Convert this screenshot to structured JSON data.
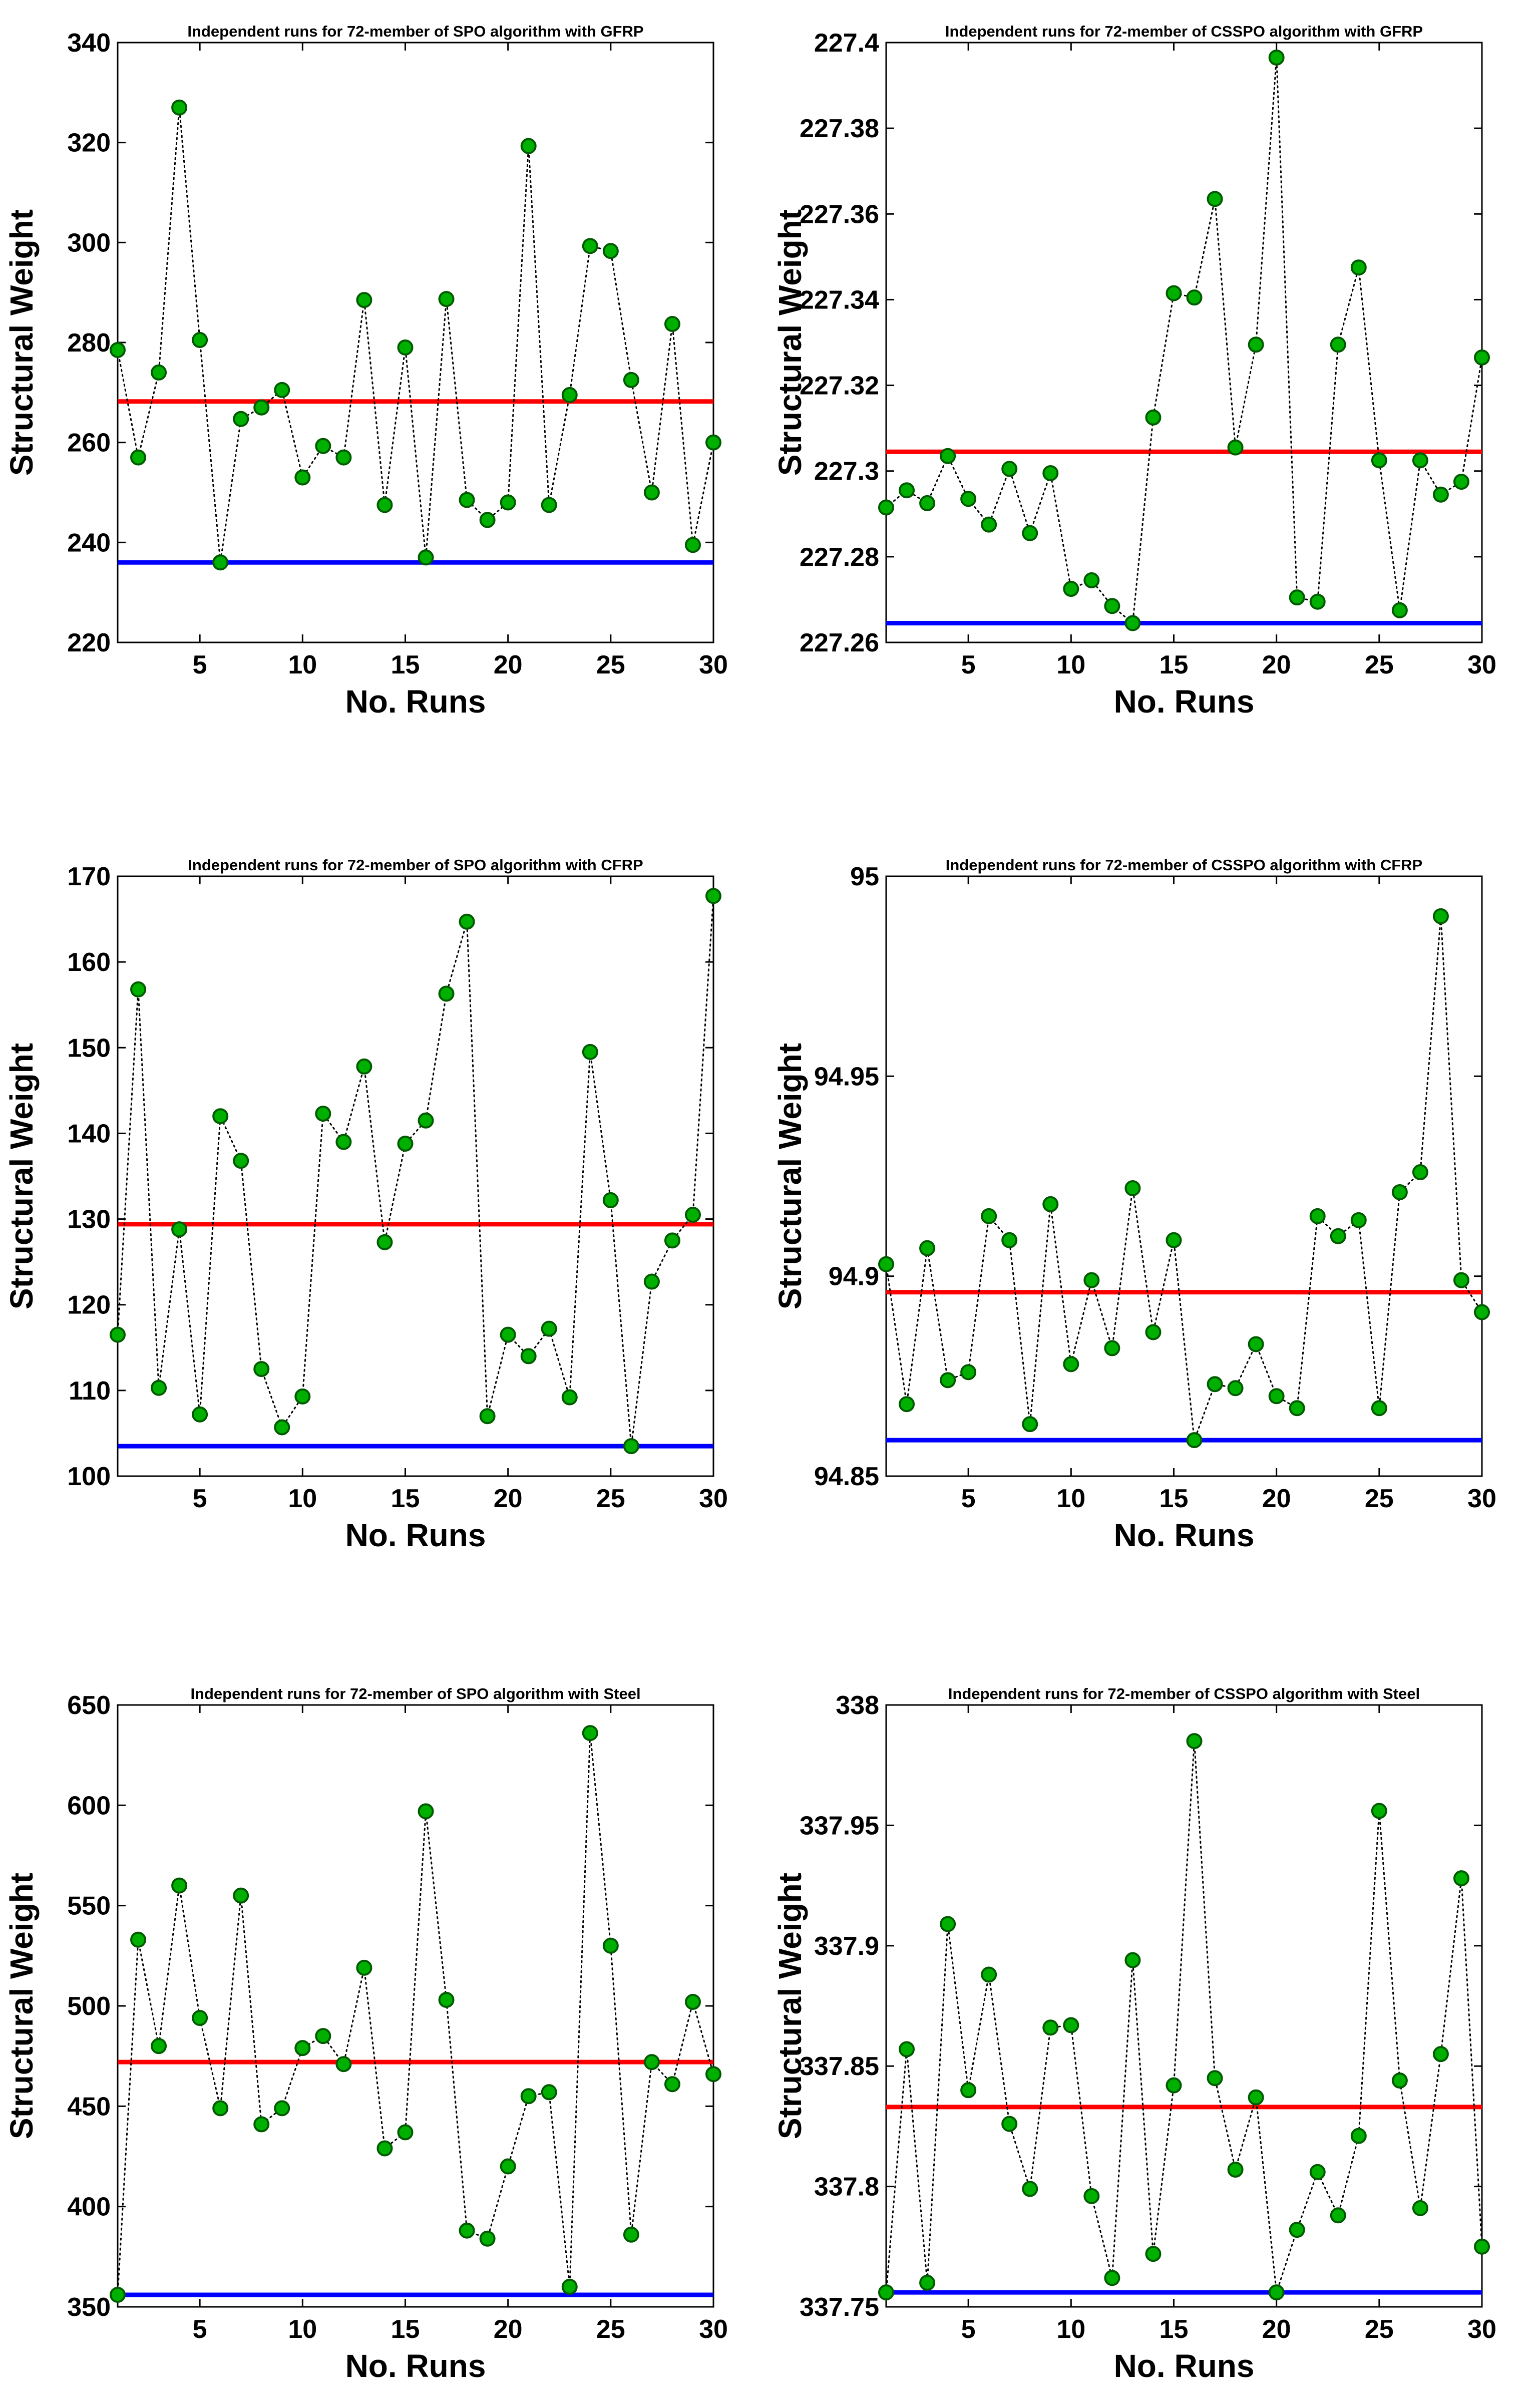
{
  "colors": {
    "mean_line": "#ff0000",
    "best_line": "#0000ff",
    "marker_fill": "#00b000",
    "marker_edge": "#005a00",
    "connector": "#000000"
  },
  "chart_data": [
    {
      "type": "line",
      "title": "Independent runs for 72-member of SPO algorithm with GFRP",
      "xlabel": "No. Runs",
      "ylabel": "Structural Weight",
      "xlim": [
        1,
        30
      ],
      "ylim": [
        220,
        340
      ],
      "xticks": [
        "5",
        "10",
        "15",
        "20",
        "25",
        "30"
      ],
      "yticks": [
        "220",
        "240",
        "260",
        "280",
        "300",
        "320",
        "340"
      ],
      "grid": false,
      "x": [
        1,
        2,
        3,
        4,
        5,
        6,
        7,
        8,
        9,
        10,
        11,
        12,
        13,
        14,
        15,
        16,
        17,
        18,
        19,
        20,
        21,
        22,
        23,
        24,
        25,
        26,
        27,
        28,
        29,
        30
      ],
      "values": [
        278.5,
        257,
        274,
        327,
        280.5,
        236,
        264.7,
        267,
        270.5,
        253,
        259.3,
        257,
        288.5,
        247.5,
        279,
        237,
        288.7,
        248.5,
        244.5,
        248,
        319.3,
        247.5,
        269.5,
        299.3,
        298.3,
        272.5,
        250,
        283.7,
        239.5,
        260
      ],
      "mean_line": 268.2,
      "best_line": 236
    },
    {
      "type": "line",
      "title": "Independent runs for 72-member of CSSPO algorithm with GFRP",
      "xlabel": "No. Runs",
      "ylabel": "Structural Weight",
      "xlim": [
        1,
        30
      ],
      "ylim": [
        227.26,
        227.4
      ],
      "xticks": [
        "5",
        "10",
        "15",
        "20",
        "25",
        "30"
      ],
      "yticks": [
        "227.26",
        "227.28",
        "227.3",
        "227.32",
        "227.34",
        "227.36",
        "227.38",
        "227.4"
      ],
      "grid": false,
      "x": [
        1,
        2,
        3,
        4,
        5,
        6,
        7,
        8,
        9,
        10,
        11,
        12,
        13,
        14,
        15,
        16,
        17,
        18,
        19,
        20,
        21,
        22,
        23,
        24,
        25,
        26,
        27,
        28,
        29,
        30
      ],
      "values": [
        227.2915,
        227.2955,
        227.2925,
        227.3035,
        227.2935,
        227.2875,
        227.3005,
        227.2855,
        227.2995,
        227.2725,
        227.2745,
        227.2685,
        227.2645,
        227.3125,
        227.3415,
        227.3405,
        227.3635,
        227.3055,
        227.3295,
        227.3965,
        227.2705,
        227.2695,
        227.3295,
        227.3475,
        227.3025,
        227.2675,
        227.3025,
        227.2945,
        227.2975,
        227.3265
      ],
      "mean_line": 227.3045,
      "best_line": 227.2645
    },
    {
      "type": "line",
      "title": "Independent runs for 72-member of SPO algorithm with CFRP",
      "xlabel": "No. Runs",
      "ylabel": "Structural Weight",
      "xlim": [
        1,
        30
      ],
      "ylim": [
        100,
        170
      ],
      "xticks": [
        "5",
        "10",
        "15",
        "20",
        "25",
        "30"
      ],
      "yticks": [
        "100",
        "110",
        "120",
        "130",
        "140",
        "150",
        "160",
        "170"
      ],
      "grid": false,
      "x": [
        1,
        2,
        3,
        4,
        5,
        6,
        7,
        8,
        9,
        10,
        11,
        12,
        13,
        14,
        15,
        16,
        17,
        18,
        19,
        20,
        21,
        22,
        23,
        24,
        25,
        26,
        27,
        28,
        29,
        30
      ],
      "values": [
        116.5,
        156.8,
        110.3,
        128.8,
        107.2,
        142,
        136.8,
        112.5,
        105.7,
        109.3,
        142.3,
        139,
        147.8,
        127.3,
        138.8,
        141.5,
        156.3,
        164.7,
        107,
        116.5,
        114,
        117.2,
        109.2,
        149.5,
        132.2,
        103.5,
        122.7,
        127.5,
        130.5,
        167.7
      ],
      "mean_line": 129.4,
      "best_line": 103.5
    },
    {
      "type": "line",
      "title": "Independent runs for 72-member of CSSPO algorithm with CFRP",
      "xlabel": "No. Runs",
      "ylabel": "Structural Weight",
      "xlim": [
        1,
        30
      ],
      "ylim": [
        94.85,
        95
      ],
      "xticks": [
        "5",
        "10",
        "15",
        "20",
        "25",
        "30"
      ],
      "yticks": [
        "94.85",
        "94.9",
        "94.95",
        "95"
      ],
      "grid": false,
      "x": [
        1,
        2,
        3,
        4,
        5,
        6,
        7,
        8,
        9,
        10,
        11,
        12,
        13,
        14,
        15,
        16,
        17,
        18,
        19,
        20,
        21,
        22,
        23,
        24,
        25,
        26,
        27,
        28,
        29,
        30
      ],
      "values": [
        94.903,
        94.868,
        94.907,
        94.874,
        94.876,
        94.915,
        94.909,
        94.863,
        94.918,
        94.878,
        94.899,
        94.882,
        94.922,
        94.886,
        94.909,
        94.859,
        94.873,
        94.872,
        94.883,
        94.87,
        94.867,
        94.915,
        94.91,
        94.914,
        94.867,
        94.921,
        94.926,
        94.99,
        94.899,
        94.891
      ],
      "mean_line": 94.896,
      "best_line": 94.859
    },
    {
      "type": "line",
      "title": "Independent runs for 72-member of SPO algorithm with Steel",
      "xlabel": "No. Runs",
      "ylabel": "Structural Weight",
      "xlim": [
        1,
        30
      ],
      "ylim": [
        350,
        650
      ],
      "xticks": [
        "5",
        "10",
        "15",
        "20",
        "25",
        "30"
      ],
      "yticks": [
        "350",
        "400",
        "450",
        "500",
        "550",
        "600",
        "650"
      ],
      "grid": false,
      "x": [
        1,
        2,
        3,
        4,
        5,
        6,
        7,
        8,
        9,
        10,
        11,
        12,
        13,
        14,
        15,
        16,
        17,
        18,
        19,
        20,
        21,
        22,
        23,
        24,
        25,
        26,
        27,
        28,
        29,
        30
      ],
      "values": [
        356,
        533,
        480,
        560,
        494,
        449,
        555,
        441,
        449,
        479,
        485,
        471,
        519,
        429,
        437,
        597,
        503,
        388,
        384,
        420,
        455,
        457,
        360,
        636,
        530,
        386,
        472,
        461,
        502,
        466
      ],
      "mean_line": 472,
      "best_line": 356
    },
    {
      "type": "line",
      "title": "Independent runs for 72-member of CSSPO algorithm with Steel",
      "xlabel": "No. Runs",
      "ylabel": "Structural Weight",
      "xlim": [
        1,
        30
      ],
      "ylim": [
        337.75,
        338
      ],
      "xticks": [
        "5",
        "10",
        "15",
        "20",
        "25",
        "30"
      ],
      "yticks": [
        "337.75",
        "337.8",
        "337.85",
        "337.9",
        "337.95",
        "338"
      ],
      "grid": false,
      "x": [
        1,
        2,
        3,
        4,
        5,
        6,
        7,
        8,
        9,
        10,
        11,
        12,
        13,
        14,
        15,
        16,
        17,
        18,
        19,
        20,
        21,
        22,
        23,
        24,
        25,
        26,
        27,
        28,
        29,
        30
      ],
      "values": [
        337.756,
        337.857,
        337.76,
        337.909,
        337.84,
        337.888,
        337.826,
        337.799,
        337.866,
        337.867,
        337.796,
        337.762,
        337.894,
        337.772,
        337.842,
        337.985,
        337.845,
        337.807,
        337.837,
        337.756,
        337.782,
        337.806,
        337.788,
        337.821,
        337.956,
        337.844,
        337.791,
        337.855,
        337.928,
        337.775
      ],
      "mean_line": 337.833,
      "best_line": 337.756
    }
  ]
}
